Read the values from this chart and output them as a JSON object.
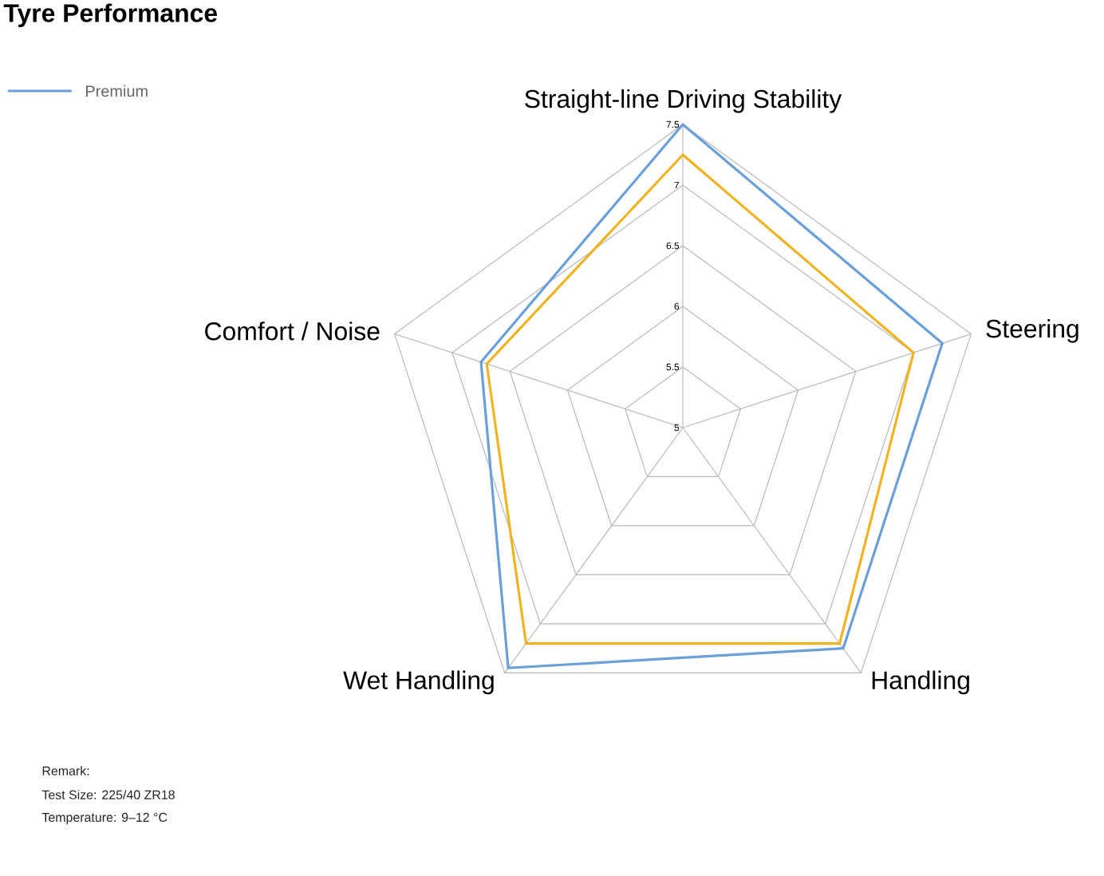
{
  "chart_data": {
    "type": "radar",
    "title": "Tyre Performance",
    "categories": [
      "Straight-line Driving Stability",
      "Steering",
      "Handling",
      "Wet Handling",
      "Comfort / Noise"
    ],
    "series": [
      {
        "name": "Premium",
        "color": "#6a9fd8",
        "values": [
          7.5,
          7.25,
          7.25,
          7.45,
          6.75
        ]
      },
      {
        "color": "#f0b323",
        "values": [
          7.25,
          7.0,
          7.2,
          7.2,
          6.7
        ]
      }
    ],
    "ylim": [
      5,
      7.5
    ],
    "yticks": [
      5,
      5.5,
      6,
      6.5,
      7,
      7.5
    ],
    "grid": true,
    "legend": "top left",
    "marker": "none",
    "line_style": "solid",
    "annotations": [
      "Remark:",
      "Test Size: 225/40 ZR18",
      "Temperature: 9–12 °C"
    ]
  }
}
